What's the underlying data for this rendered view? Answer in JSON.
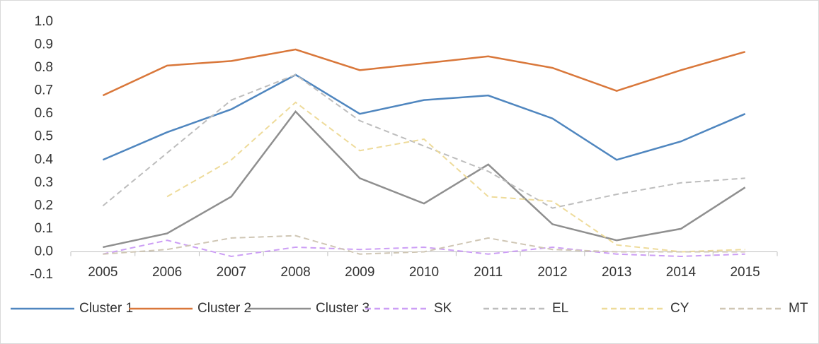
{
  "chart_data": {
    "type": "line",
    "categories": [
      "2005",
      "2006",
      "2007",
      "2008",
      "2009",
      "2010",
      "2011",
      "2012",
      "2013",
      "2014",
      "2015"
    ],
    "series": [
      {
        "name": "Cluster 1",
        "color": "#4f86bf",
        "style": "solid",
        "values": [
          0.4,
          0.52,
          0.62,
          0.77,
          0.6,
          0.66,
          0.68,
          0.58,
          0.4,
          0.48,
          0.6
        ]
      },
      {
        "name": "Cluster 2",
        "color": "#d9773a",
        "style": "solid",
        "values": [
          0.68,
          0.81,
          0.83,
          0.88,
          0.79,
          0.82,
          0.85,
          0.8,
          0.7,
          0.79,
          0.87
        ]
      },
      {
        "name": "Cluster 3",
        "color": "#8f8f8f",
        "style": "solid",
        "values": [
          0.02,
          0.08,
          0.24,
          0.61,
          0.32,
          0.21,
          0.38,
          0.12,
          0.05,
          0.1,
          0.28
        ]
      },
      {
        "name": "SK",
        "color": "#cc9ef5",
        "style": "dashed",
        "values": [
          -0.01,
          0.05,
          -0.02,
          0.02,
          0.01,
          0.02,
          -0.01,
          0.02,
          -0.01,
          -0.02,
          -0.01
        ]
      },
      {
        "name": "EL",
        "color": "#bdbdbd",
        "style": "dashed",
        "values": [
          0.2,
          0.43,
          0.66,
          0.77,
          0.57,
          0.46,
          0.35,
          0.19,
          0.25,
          0.3,
          0.32
        ]
      },
      {
        "name": "CY",
        "color": "#eedb9a",
        "style": "dashed",
        "values": [
          null,
          0.24,
          0.4,
          0.65,
          0.44,
          0.49,
          0.24,
          0.22,
          0.03,
          0.0,
          0.01
        ]
      },
      {
        "name": "MT",
        "color": "#cfc6b4",
        "style": "dashed",
        "values": [
          -0.01,
          0.01,
          0.06,
          0.07,
          -0.01,
          0.0,
          0.06,
          0.01,
          0.0,
          0.0,
          0.0
        ]
      }
    ],
    "ylim": [
      -0.1,
      1.0
    ],
    "yticks": [
      {
        "value": -0.1,
        "label": "-0.1"
      },
      {
        "value": 0,
        "label": "0.0"
      },
      {
        "value": 0.1,
        "label": "0.1"
      },
      {
        "value": 0.2,
        "label": "0.2"
      },
      {
        "value": 0.3,
        "label": "0.3"
      },
      {
        "value": 0.4,
        "label": "0.4"
      },
      {
        "value": 0.5,
        "label": "0.5"
      },
      {
        "value": 0.6,
        "label": "0.6"
      },
      {
        "value": 0.7,
        "label": "0.7"
      },
      {
        "value": 0.8,
        "label": "0.8"
      },
      {
        "value": 0.9,
        "label": "0.9"
      },
      {
        "value": 1.0,
        "label": "1.0"
      }
    ],
    "grid": false,
    "legend": "bottom"
  }
}
